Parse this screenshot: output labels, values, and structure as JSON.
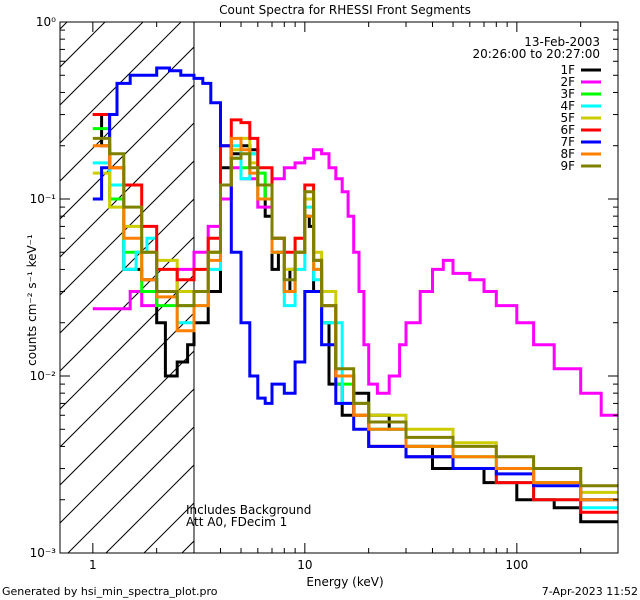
{
  "chart_data": {
    "type": "line",
    "title": "Count Spectra for RHESSI Front Segments",
    "xlabel": "Energy (keV)",
    "ylabel": "counts cm⁻² s⁻¹ keV⁻¹",
    "xscale": "log",
    "yscale": "log",
    "xlim": [
      0.7,
      300
    ],
    "ylim": [
      0.001,
      1
    ],
    "x_ticks": [
      {
        "v": 1,
        "label": "1"
      },
      {
        "v": 10,
        "label": "10"
      },
      {
        "v": 100,
        "label": "100"
      }
    ],
    "y_ticks": [
      {
        "v": 1,
        "label": "10⁰"
      },
      {
        "v": 0.1,
        "label": "10⁻¹"
      },
      {
        "v": 0.01,
        "label": "10⁻²"
      },
      {
        "v": 0.001,
        "label": "10⁻³"
      }
    ],
    "attenuator_threshold_keV": 3,
    "date": "13-Feb-2003",
    "time_range": "20:26:00 to 20:27:00",
    "annotation_lines": [
      "Includes Background",
      "Att A0, FDecim 1"
    ],
    "legend_position": "top-right",
    "series": [
      {
        "name": "1F",
        "color": "#000000",
        "points": [
          [
            1.0,
            0.3
          ],
          [
            1.1,
            0.2
          ],
          [
            1.2,
            0.1
          ],
          [
            1.4,
            0.04
          ],
          [
            1.7,
            0.035
          ],
          [
            2.0,
            0.02
          ],
          [
            2.2,
            0.01
          ],
          [
            2.5,
            0.012
          ],
          [
            2.8,
            0.015
          ],
          [
            3.0,
            0.02
          ],
          [
            3.5,
            0.03
          ],
          [
            4.0,
            0.15
          ],
          [
            4.5,
            0.18
          ],
          [
            5.0,
            0.2
          ],
          [
            5.5,
            0.19
          ],
          [
            6.0,
            0.12
          ],
          [
            6.5,
            0.08
          ],
          [
            7.0,
            0.04
          ],
          [
            7.5,
            0.05
          ],
          [
            8.0,
            0.03
          ],
          [
            8.5,
            0.04
          ],
          [
            9.0,
            0.05
          ],
          [
            10.0,
            0.08
          ],
          [
            10.5,
            0.07
          ],
          [
            11.0,
            0.03
          ],
          [
            12.0,
            0.02
          ],
          [
            13.0,
            0.009
          ],
          [
            15.0,
            0.006
          ],
          [
            17.0,
            0.008
          ],
          [
            20.0,
            0.006
          ],
          [
            25.0,
            0.005
          ],
          [
            30.0,
            0.004
          ],
          [
            40.0,
            0.003
          ],
          [
            50.0,
            0.003
          ],
          [
            70.0,
            0.0025
          ],
          [
            100.0,
            0.002
          ],
          [
            150.0,
            0.0018
          ],
          [
            200.0,
            0.0015
          ],
          [
            300.0,
            0.0013
          ]
        ]
      },
      {
        "name": "2F",
        "color": "#ff00ff",
        "points": [
          [
            1.0,
            0.024
          ],
          [
            1.4,
            0.024
          ],
          [
            1.5,
            0.03
          ],
          [
            1.7,
            0.025
          ],
          [
            2.0,
            0.03
          ],
          [
            2.5,
            0.04
          ],
          [
            3.0,
            0.05
          ],
          [
            3.5,
            0.07
          ],
          [
            4.0,
            0.1
          ],
          [
            4.5,
            0.15
          ],
          [
            5.0,
            0.13
          ],
          [
            6.0,
            0.09
          ],
          [
            7.0,
            0.13
          ],
          [
            8.0,
            0.15
          ],
          [
            9.0,
            0.16
          ],
          [
            10.0,
            0.17
          ],
          [
            11.0,
            0.19
          ],
          [
            12.0,
            0.18
          ],
          [
            13.0,
            0.15
          ],
          [
            14.0,
            0.13
          ],
          [
            15.0,
            0.11
          ],
          [
            16.0,
            0.08
          ],
          [
            17.0,
            0.05
          ],
          [
            18.0,
            0.03
          ],
          [
            19.0,
            0.015
          ],
          [
            20.0,
            0.009
          ],
          [
            22.0,
            0.008
          ],
          [
            25.0,
            0.01
          ],
          [
            28.0,
            0.015
          ],
          [
            30.0,
            0.02
          ],
          [
            35.0,
            0.03
          ],
          [
            40.0,
            0.04
          ],
          [
            45.0,
            0.045
          ],
          [
            50.0,
            0.038
          ],
          [
            60.0,
            0.035
          ],
          [
            70.0,
            0.03
          ],
          [
            80.0,
            0.025
          ],
          [
            100.0,
            0.02
          ],
          [
            120.0,
            0.015
          ],
          [
            150.0,
            0.011
          ],
          [
            200.0,
            0.008
          ],
          [
            250.0,
            0.006
          ],
          [
            300.0,
            0.0045
          ]
        ]
      },
      {
        "name": "3F",
        "color": "#00ff00",
        "points": [
          [
            1.0,
            0.25
          ],
          [
            1.2,
            0.1
          ],
          [
            1.4,
            0.05
          ],
          [
            1.7,
            0.03
          ],
          [
            2.0,
            0.025
          ],
          [
            2.5,
            0.025
          ],
          [
            3.0,
            0.03
          ],
          [
            3.5,
            0.05
          ],
          [
            4.0,
            0.12
          ],
          [
            4.5,
            0.17
          ],
          [
            5.0,
            0.15
          ],
          [
            5.5,
            0.18
          ],
          [
            6.0,
            0.14
          ],
          [
            6.5,
            0.1
          ],
          [
            7.0,
            0.05
          ],
          [
            8.0,
            0.03
          ],
          [
            9.0,
            0.05
          ],
          [
            10.0,
            0.1
          ],
          [
            11.0,
            0.04
          ],
          [
            12.0,
            0.02
          ],
          [
            14.0,
            0.009
          ],
          [
            17.0,
            0.006
          ],
          [
            20.0,
            0.005
          ],
          [
            30.0,
            0.004
          ],
          [
            50.0,
            0.0035
          ],
          [
            80.0,
            0.003
          ],
          [
            120.0,
            0.0025
          ],
          [
            200.0,
            0.002
          ],
          [
            300.0,
            0.0015
          ]
        ]
      },
      {
        "name": "4F",
        "color": "#00ffff",
        "points": [
          [
            1.0,
            0.16
          ],
          [
            1.2,
            0.12
          ],
          [
            1.4,
            0.04
          ],
          [
            1.6,
            0.05
          ],
          [
            1.8,
            0.06
          ],
          [
            2.0,
            0.03
          ],
          [
            2.5,
            0.02
          ],
          [
            3.0,
            0.025
          ],
          [
            3.5,
            0.04
          ],
          [
            4.0,
            0.12
          ],
          [
            4.5,
            0.2
          ],
          [
            5.0,
            0.13
          ],
          [
            5.5,
            0.18
          ],
          [
            6.0,
            0.1
          ],
          [
            7.0,
            0.05
          ],
          [
            8.0,
            0.025
          ],
          [
            9.0,
            0.04
          ],
          [
            10.0,
            0.09
          ],
          [
            11.0,
            0.035
          ],
          [
            12.0,
            0.02
          ],
          [
            15.0,
            0.007
          ],
          [
            20.0,
            0.005
          ],
          [
            30.0,
            0.0035
          ],
          [
            50.0,
            0.003
          ],
          [
            80.0,
            0.0025
          ],
          [
            120.0,
            0.002
          ],
          [
            200.0,
            0.0018
          ],
          [
            300.0,
            0.0015
          ]
        ]
      },
      {
        "name": "5F",
        "color": "#cccc00",
        "points": [
          [
            1.0,
            0.14
          ],
          [
            1.2,
            0.09
          ],
          [
            1.4,
            0.07
          ],
          [
            1.7,
            0.05
          ],
          [
            2.0,
            0.045
          ],
          [
            2.5,
            0.03
          ],
          [
            3.0,
            0.03
          ],
          [
            3.5,
            0.05
          ],
          [
            4.0,
            0.12
          ],
          [
            4.5,
            0.19
          ],
          [
            5.0,
            0.22
          ],
          [
            5.5,
            0.16
          ],
          [
            6.0,
            0.1
          ],
          [
            7.0,
            0.06
          ],
          [
            8.0,
            0.04
          ],
          [
            9.0,
            0.06
          ],
          [
            10.0,
            0.1
          ],
          [
            11.0,
            0.05
          ],
          [
            12.0,
            0.03
          ],
          [
            14.0,
            0.01
          ],
          [
            17.0,
            0.007
          ],
          [
            20.0,
            0.006
          ],
          [
            30.0,
            0.005
          ],
          [
            50.0,
            0.0042
          ],
          [
            80.0,
            0.0035
          ],
          [
            120.0,
            0.003
          ],
          [
            200.0,
            0.0022
          ],
          [
            300.0,
            0.0018
          ]
        ]
      },
      {
        "name": "6F",
        "color": "#ff0000",
        "points": [
          [
            1.0,
            0.3
          ],
          [
            1.2,
            0.15
          ],
          [
            1.4,
            0.12
          ],
          [
            1.7,
            0.07
          ],
          [
            2.0,
            0.04
          ],
          [
            2.5,
            0.035
          ],
          [
            3.0,
            0.04
          ],
          [
            3.5,
            0.06
          ],
          [
            4.0,
            0.2
          ],
          [
            4.5,
            0.28
          ],
          [
            5.0,
            0.27
          ],
          [
            5.5,
            0.22
          ],
          [
            6.0,
            0.15
          ],
          [
            7.0,
            0.06
          ],
          [
            8.0,
            0.05
          ],
          [
            9.0,
            0.06
          ],
          [
            10.0,
            0.12
          ],
          [
            11.0,
            0.045
          ],
          [
            12.0,
            0.025
          ],
          [
            14.0,
            0.01
          ],
          [
            17.0,
            0.006
          ],
          [
            20.0,
            0.004
          ],
          [
            30.0,
            0.0035
          ],
          [
            50.0,
            0.003
          ],
          [
            80.0,
            0.0025
          ],
          [
            120.0,
            0.002
          ],
          [
            200.0,
            0.0017
          ],
          [
            300.0,
            0.0013
          ]
        ]
      },
      {
        "name": "7F",
        "color": "#0000ff",
        "points": [
          [
            1.0,
            0.1
          ],
          [
            1.1,
            0.15
          ],
          [
            1.2,
            0.3
          ],
          [
            1.3,
            0.45
          ],
          [
            1.5,
            0.5
          ],
          [
            1.8,
            0.5
          ],
          [
            2.0,
            0.55
          ],
          [
            2.3,
            0.53
          ],
          [
            2.6,
            0.5
          ],
          [
            3.0,
            0.48
          ],
          [
            3.3,
            0.45
          ],
          [
            3.6,
            0.35
          ],
          [
            4.0,
            0.2
          ],
          [
            4.5,
            0.05
          ],
          [
            5.0,
            0.02
          ],
          [
            5.5,
            0.01
          ],
          [
            6.0,
            0.0075
          ],
          [
            6.5,
            0.007
          ],
          [
            7.0,
            0.009
          ],
          [
            8.0,
            0.008
          ],
          [
            9.0,
            0.012
          ],
          [
            10.0,
            0.03
          ],
          [
            11.0,
            0.03
          ],
          [
            12.0,
            0.015
          ],
          [
            14.0,
            0.007
          ],
          [
            17.0,
            0.005
          ],
          [
            20.0,
            0.004
          ],
          [
            30.0,
            0.0035
          ],
          [
            50.0,
            0.003
          ],
          [
            80.0,
            0.0028
          ],
          [
            120.0,
            0.0024
          ],
          [
            200.0,
            0.002
          ],
          [
            300.0,
            0.0015
          ]
        ]
      },
      {
        "name": "8F",
        "color": "#ff8000",
        "points": [
          [
            1.0,
            0.2
          ],
          [
            1.2,
            0.15
          ],
          [
            1.4,
            0.06
          ],
          [
            1.7,
            0.035
          ],
          [
            2.0,
            0.028
          ],
          [
            2.5,
            0.018
          ],
          [
            3.0,
            0.025
          ],
          [
            3.5,
            0.045
          ],
          [
            4.0,
            0.12
          ],
          [
            4.5,
            0.22
          ],
          [
            5.0,
            0.19
          ],
          [
            5.5,
            0.14
          ],
          [
            6.0,
            0.1
          ],
          [
            7.0,
            0.05
          ],
          [
            8.0,
            0.03
          ],
          [
            9.0,
            0.05
          ],
          [
            10.0,
            0.08
          ],
          [
            11.0,
            0.04
          ],
          [
            12.0,
            0.025
          ],
          [
            14.0,
            0.01
          ],
          [
            17.0,
            0.006
          ],
          [
            20.0,
            0.005
          ],
          [
            30.0,
            0.004
          ],
          [
            50.0,
            0.0035
          ],
          [
            80.0,
            0.003
          ],
          [
            120.0,
            0.0025
          ],
          [
            200.0,
            0.002
          ],
          [
            300.0,
            0.0016
          ]
        ]
      },
      {
        "name": "9F",
        "color": "#808000",
        "points": [
          [
            1.0,
            0.22
          ],
          [
            1.2,
            0.18
          ],
          [
            1.4,
            0.09
          ],
          [
            1.7,
            0.05
          ],
          [
            2.0,
            0.03
          ],
          [
            2.5,
            0.025
          ],
          [
            3.0,
            0.03
          ],
          [
            3.5,
            0.05
          ],
          [
            4.0,
            0.12
          ],
          [
            4.5,
            0.17
          ],
          [
            5.0,
            0.18
          ],
          [
            5.5,
            0.15
          ],
          [
            6.0,
            0.12
          ],
          [
            7.0,
            0.06
          ],
          [
            8.0,
            0.035
          ],
          [
            9.0,
            0.05
          ],
          [
            10.0,
            0.11
          ],
          [
            11.0,
            0.045
          ],
          [
            12.0,
            0.025
          ],
          [
            14.0,
            0.011
          ],
          [
            17.0,
            0.007
          ],
          [
            20.0,
            0.0055
          ],
          [
            30.0,
            0.0045
          ],
          [
            50.0,
            0.004
          ],
          [
            80.0,
            0.0035
          ],
          [
            120.0,
            0.003
          ],
          [
            200.0,
            0.0024
          ],
          [
            300.0,
            0.002
          ]
        ]
      }
    ]
  },
  "footer": {
    "generated_by": "Generated by hsi_min_spectra_plot.pro",
    "timestamp": "7-Apr-2023 11:52"
  }
}
